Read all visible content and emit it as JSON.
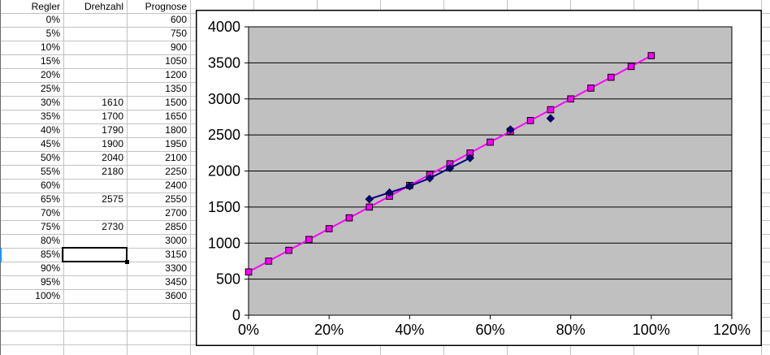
{
  "spreadsheet": {
    "columns": [
      "Regler",
      "Drehzahl",
      "Prognose"
    ],
    "rows": [
      {
        "regler": "0%",
        "drehzahl": "",
        "prognose": "600"
      },
      {
        "regler": "5%",
        "drehzahl": "",
        "prognose": "750"
      },
      {
        "regler": "10%",
        "drehzahl": "",
        "prognose": "900"
      },
      {
        "regler": "15%",
        "drehzahl": "",
        "prognose": "1050"
      },
      {
        "regler": "20%",
        "drehzahl": "",
        "prognose": "1200"
      },
      {
        "regler": "25%",
        "drehzahl": "",
        "prognose": "1350"
      },
      {
        "regler": "30%",
        "drehzahl": "1610",
        "prognose": "1500"
      },
      {
        "regler": "35%",
        "drehzahl": "1700",
        "prognose": "1650"
      },
      {
        "regler": "40%",
        "drehzahl": "1790",
        "prognose": "1800"
      },
      {
        "regler": "45%",
        "drehzahl": "1900",
        "prognose": "1950"
      },
      {
        "regler": "50%",
        "drehzahl": "2040",
        "prognose": "2100"
      },
      {
        "regler": "55%",
        "drehzahl": "2180",
        "prognose": "2250"
      },
      {
        "regler": "60%",
        "drehzahl": "",
        "prognose": "2400"
      },
      {
        "regler": "65%",
        "drehzahl": "2575",
        "prognose": "2550"
      },
      {
        "regler": "70%",
        "drehzahl": "",
        "prognose": "2700"
      },
      {
        "regler": "75%",
        "drehzahl": "2730",
        "prognose": "2850"
      },
      {
        "regler": "80%",
        "drehzahl": "",
        "prognose": "3000"
      },
      {
        "regler": "85%",
        "drehzahl": "",
        "prognose": "3150"
      },
      {
        "regler": "90%",
        "drehzahl": "",
        "prognose": "3300"
      },
      {
        "regler": "95%",
        "drehzahl": "",
        "prognose": "3450"
      },
      {
        "regler": "100%",
        "drehzahl": "",
        "prognose": "3600"
      }
    ],
    "selection": {
      "regler": "85%",
      "column": "Drehzahl"
    }
  },
  "chart_data": {
    "type": "line",
    "title": "",
    "xlabel": "",
    "ylabel": "",
    "xlim": [
      0,
      120
    ],
    "ylim": [
      0,
      4000
    ],
    "x_tick_step": 20,
    "y_tick_step": 500,
    "x_tick_labels": [
      "0%",
      "20%",
      "40%",
      "60%",
      "80%",
      "100%",
      "120%"
    ],
    "y_tick_labels": [
      "0",
      "500",
      "1000",
      "1500",
      "2000",
      "2500",
      "3000",
      "3500",
      "4000"
    ],
    "grid": "horizontal",
    "legend": "none",
    "plot_bg": "#c0c0c0",
    "x": [
      0,
      5,
      10,
      15,
      20,
      25,
      30,
      35,
      40,
      45,
      50,
      55,
      60,
      65,
      70,
      75,
      80,
      85,
      90,
      95,
      100
    ],
    "series": [
      {
        "name": "Prognose",
        "color": "#ff00ff",
        "marker": "square",
        "values": [
          600,
          750,
          900,
          1050,
          1200,
          1350,
          1500,
          1650,
          1800,
          1950,
          2100,
          2250,
          2400,
          2550,
          2700,
          2850,
          3000,
          3150,
          3300,
          3450,
          3600
        ]
      },
      {
        "name": "Drehzahl",
        "color": "#000080",
        "marker": "diamond",
        "values": [
          null,
          null,
          null,
          null,
          null,
          null,
          1610,
          1700,
          1790,
          1900,
          2040,
          2180,
          null,
          2575,
          null,
          2730,
          null,
          null,
          null,
          null,
          null
        ]
      }
    ]
  },
  "colors": {
    "grid_line": "#c2c2c2",
    "selection_border": "#000000",
    "row_header_selected": "#1e90ff",
    "chart_border": "#000000"
  }
}
